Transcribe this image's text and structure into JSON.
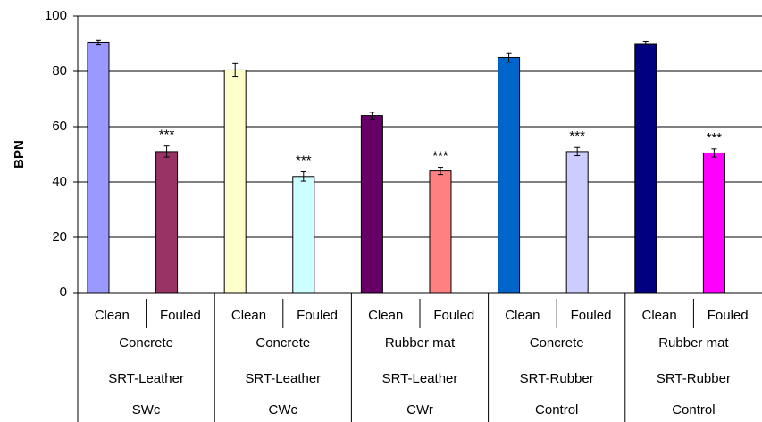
{
  "chart_data": {
    "type": "bar",
    "y_label": "BPN",
    "categories": [
      "Clean",
      "Fouled",
      "Clean",
      "Fouled",
      "Clean",
      "Fouled",
      "Clean",
      "Fouled",
      "Clean",
      "Fouled"
    ],
    "category_groups": [
      [
        "Concrete",
        "Concrete",
        "Rubber mat",
        "Concrete",
        "Rubber mat"
      ],
      [
        "SRT-Leather",
        "SRT-Leather",
        "SRT-Leather",
        "SRT-Rubber",
        "SRT-Rubber"
      ],
      [
        "SWc",
        "CWc",
        "CWr",
        "Control",
        "Control"
      ]
    ],
    "values": [
      90.5,
      51,
      80.5,
      42,
      64,
      44,
      85,
      51,
      90,
      50.5
    ],
    "errors": [
      0.7,
      2,
      2.3,
      1.7,
      1.2,
      1.3,
      1.7,
      1.5,
      0.8,
      1.5
    ],
    "colors": [
      "#9999ff",
      "#993366",
      "#ffffcc",
      "#ccffff",
      "#660066",
      "#ff8080",
      "#0066cc",
      "#ccccff",
      "#000080",
      "#ff00ff"
    ],
    "annotations": [
      null,
      "***",
      null,
      "***",
      null,
      "***",
      null,
      "***",
      null,
      "***"
    ],
    "ylim": [
      0,
      100
    ],
    "yticks": [
      0,
      20,
      40,
      60,
      80,
      100
    ],
    "grid": true
  }
}
